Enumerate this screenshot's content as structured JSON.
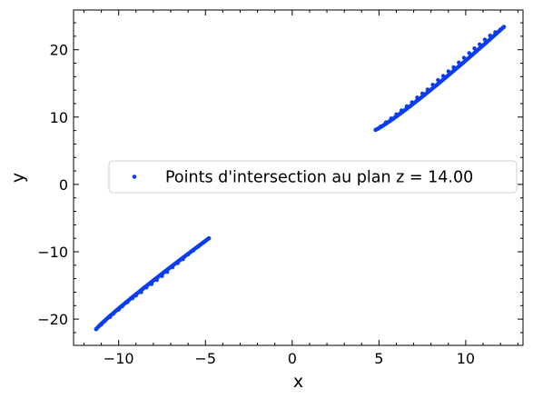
{
  "chart_data": {
    "type": "scatter",
    "xlabel": "x",
    "ylabel": "y",
    "xlim": [
      -12.6,
      13.3
    ],
    "ylim": [
      -23.9,
      25.9
    ],
    "x_ticks": [
      -10,
      -5,
      0,
      5,
      10
    ],
    "y_ticks": [
      -20,
      -10,
      0,
      10,
      20
    ],
    "x_tick_labels": [
      "−10",
      "−5",
      "0",
      "5",
      "10"
    ],
    "y_tick_labels": [
      "−20",
      "−10",
      "0",
      "10",
      "20"
    ],
    "grid": false,
    "legend_position": "center-right",
    "marker_color": "#0a3cf0",
    "series": [
      {
        "name": "Points d'intersection au plan z = 14.00",
        "segments": [
          {
            "x_range": [
              -11.3,
              -4.8
            ],
            "y_range": [
              -21.5,
              -8.0
            ],
            "curve_exponent": 0.92
          },
          {
            "x_range": [
              4.8,
              12.2
            ],
            "y_range": [
              8.1,
              23.4
            ],
            "curve_exponent": 1.12
          }
        ],
        "points": [
          [
            -11.3,
            -21.5
          ],
          [
            -11.0,
            -20.8
          ],
          [
            -10.8,
            -20.3
          ],
          [
            -10.5,
            -19.7
          ],
          [
            -10.3,
            -19.2
          ],
          [
            -10.0,
            -18.6
          ],
          [
            -9.8,
            -18.1
          ],
          [
            -9.5,
            -17.5
          ],
          [
            -9.2,
            -16.9
          ],
          [
            -9.0,
            -16.5
          ],
          [
            -8.7,
            -16.0
          ],
          [
            -8.4,
            -15.3
          ],
          [
            -8.1,
            -14.8
          ],
          [
            -7.8,
            -14.2
          ],
          [
            -7.5,
            -13.6
          ],
          [
            -7.2,
            -13.0
          ],
          [
            -6.9,
            -12.3
          ],
          [
            -6.6,
            -11.7
          ],
          [
            -6.3,
            -11.1
          ],
          [
            -6.0,
            -10.4
          ],
          [
            -5.7,
            -9.8
          ],
          [
            -5.4,
            -9.2
          ],
          [
            -5.1,
            -8.6
          ],
          [
            -4.8,
            -8.0
          ],
          [
            4.8,
            8.1
          ],
          [
            5.1,
            8.6
          ],
          [
            5.4,
            9.2
          ],
          [
            5.7,
            9.8
          ],
          [
            6.0,
            10.4
          ],
          [
            6.3,
            11.0
          ],
          [
            6.6,
            11.6
          ],
          [
            6.9,
            12.2
          ],
          [
            7.2,
            12.9
          ],
          [
            7.5,
            13.5
          ],
          [
            7.8,
            14.1
          ],
          [
            8.1,
            14.8
          ],
          [
            8.4,
            15.5
          ],
          [
            8.7,
            16.1
          ],
          [
            9.0,
            16.8
          ],
          [
            9.3,
            17.4
          ],
          [
            9.6,
            18.1
          ],
          [
            9.9,
            18.8
          ],
          [
            10.2,
            19.5
          ],
          [
            10.5,
            20.2
          ],
          [
            10.8,
            20.8
          ],
          [
            11.1,
            21.5
          ],
          [
            11.4,
            22.1
          ],
          [
            11.7,
            22.6
          ],
          [
            12.0,
            23.0
          ],
          [
            12.2,
            23.4
          ]
        ]
      }
    ]
  }
}
